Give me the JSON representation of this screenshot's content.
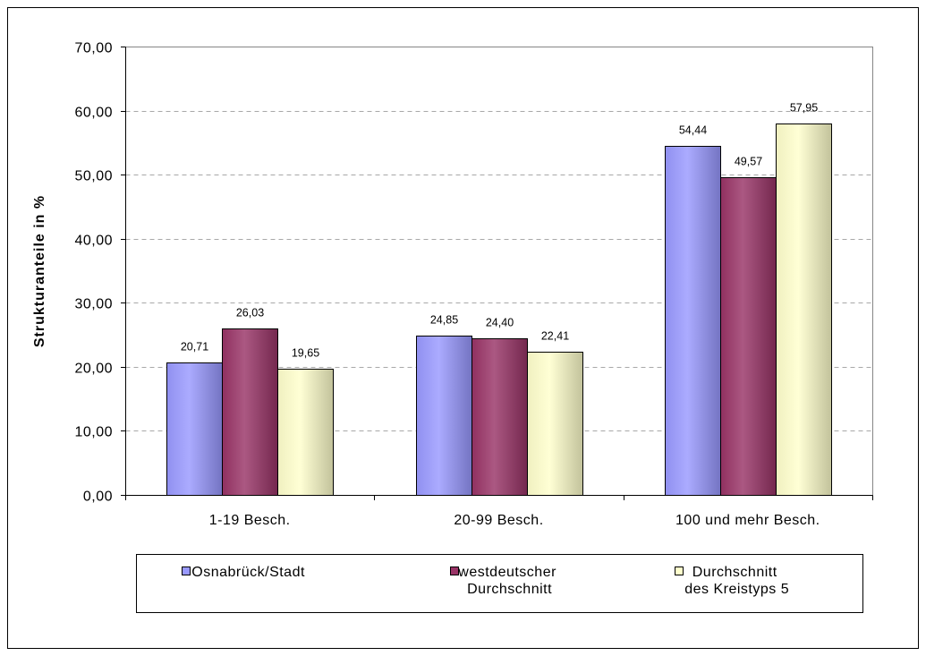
{
  "chart_data": {
    "type": "bar",
    "ylabel": "Strukturanteile in %",
    "categories": [
      "1-19 Besch.",
      "20-99 Besch.",
      "100 und mehr Besch."
    ],
    "series": [
      {
        "name": "Osnabrück/Stadt",
        "values": [
          20.71,
          24.85,
          54.44
        ],
        "labels": [
          "20,71",
          "24,85",
          "54,44"
        ],
        "color": "#9999FF"
      },
      {
        "name": "westdeutscher Durchschnitt",
        "values": [
          26.03,
          24.4,
          49.57
        ],
        "labels": [
          "26,03",
          "24,40",
          "49,57"
        ],
        "color": "#993366"
      },
      {
        "name": "Durchschnitt des Kreistyps 5",
        "values": [
          19.65,
          22.41,
          57.95
        ],
        "labels": [
          "19,65",
          "22,41",
          "57,95"
        ],
        "color": "#FFFFCC"
      }
    ],
    "ylim": [
      0,
      70
    ],
    "yticks": [
      0,
      10,
      20,
      30,
      40,
      50,
      60,
      70
    ],
    "ytick_labels": [
      "0,00",
      "10,00",
      "20,00",
      "30,00",
      "40,00",
      "50,00",
      "60,00",
      "70,00"
    ],
    "grid": true,
    "legend": "bottom"
  }
}
